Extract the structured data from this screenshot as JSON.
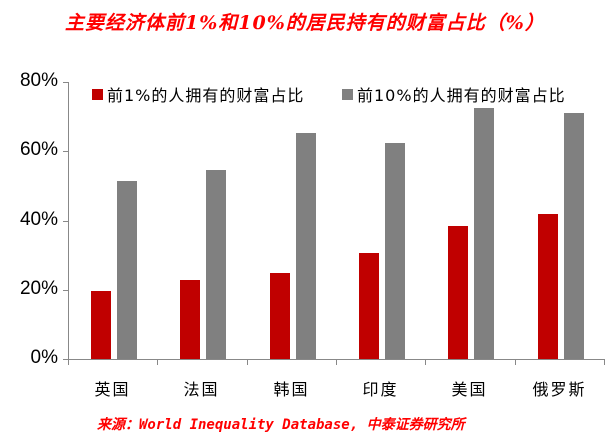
{
  "title": "主要经济体前1%和10%的居民持有的财富占比（%）",
  "source": "来源：World Inequality Database, 中泰证券研究所",
  "colors": {
    "top1": "#c00000",
    "top10": "#808080",
    "title": "#ff0000"
  },
  "legend": [
    {
      "label": "前1%的人拥有的财富占比",
      "color": "#c00000"
    },
    {
      "label": "前10%的人拥有的财富占比",
      "color": "#808080"
    }
  ],
  "y_ticks": [
    "0%",
    "20%",
    "40%",
    "60%",
    "80%"
  ],
  "chart_data": {
    "type": "bar",
    "title": "主要经济体前1%和10%的居民持有的财富占比（%）",
    "xlabel": "",
    "ylabel": "",
    "ylim": [
      0,
      80
    ],
    "y_tick_labels": [
      "0%",
      "20%",
      "40%",
      "60%",
      "80%"
    ],
    "grid": false,
    "legend_position": "top",
    "categories": [
      "英国",
      "法国",
      "韩国",
      "印度",
      "美国",
      "俄罗斯"
    ],
    "series": [
      {
        "name": "前1%的人拥有的财富占比",
        "color": "#c00000",
        "values": [
          19.5,
          22.8,
          24.8,
          30.5,
          38.3,
          42.0
        ]
      },
      {
        "name": "前10%的人拥有的财富占比",
        "color": "#808080",
        "values": [
          51.3,
          54.7,
          65.3,
          62.4,
          72.5,
          71.1
        ]
      }
    ],
    "source": "来源：World Inequality Database, 中泰证券研究所"
  }
}
